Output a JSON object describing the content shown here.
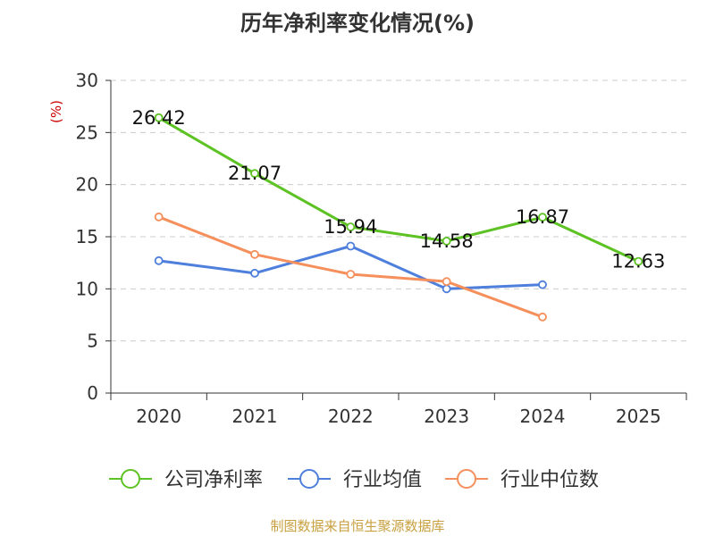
{
  "chart_data": {
    "type": "line",
    "title": "历年净利率变化情况(%)",
    "ylabel": "(%)",
    "xlabel": "",
    "categories": [
      "2020",
      "2021",
      "2022",
      "2023",
      "2024",
      "2025"
    ],
    "ylim": [
      0,
      30
    ],
    "yticks": [
      0,
      5,
      10,
      15,
      20,
      25,
      30
    ],
    "grid": true,
    "legend_position": "bottom-center",
    "series": [
      {
        "name": "公司净利率",
        "color": "#5dc223",
        "values": [
          26.42,
          21.07,
          15.94,
          14.58,
          16.87,
          12.63
        ],
        "labels": [
          "26.42",
          "21.07",
          "15.94",
          "14.58",
          "16.87",
          "12.63"
        ]
      },
      {
        "name": "行业均值",
        "color": "#4e7fdc",
        "values": [
          12.7,
          11.5,
          14.1,
          10.0,
          10.4,
          null
        ],
        "labels": null
      },
      {
        "name": "行业中位数",
        "color": "#f58f5b",
        "values": [
          16.9,
          13.3,
          11.4,
          10.7,
          7.3,
          null
        ],
        "labels": null
      }
    ]
  },
  "source": "制图数据来自恒生聚源数据库"
}
